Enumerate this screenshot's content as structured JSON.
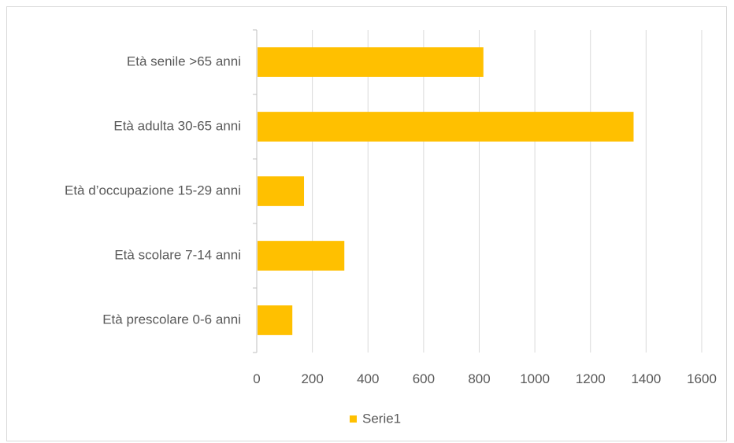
{
  "chart_data": {
    "type": "bar",
    "orientation": "horizontal",
    "categories": [
      "Età prescolare 0-6 anni",
      "Età scolare 7-14 anni",
      "Età d’occupazione 15-29 anni",
      "Età adulta 30-65 anni",
      "Età senile >65 anni"
    ],
    "series": [
      {
        "name": "Serie1",
        "values": [
          128,
          315,
          170,
          1355,
          815
        ]
      }
    ],
    "xlim": [
      0,
      1600
    ],
    "x_ticks": [
      "0",
      "200",
      "400",
      "600",
      "800",
      "1000",
      "1200",
      "1400",
      "1600"
    ],
    "grid": "vertical",
    "legend": "bottom",
    "colors": {
      "bar": "#FFC000",
      "grid": "#d9d9d9",
      "axis": "#bfbfbf",
      "text": "#595959"
    }
  }
}
